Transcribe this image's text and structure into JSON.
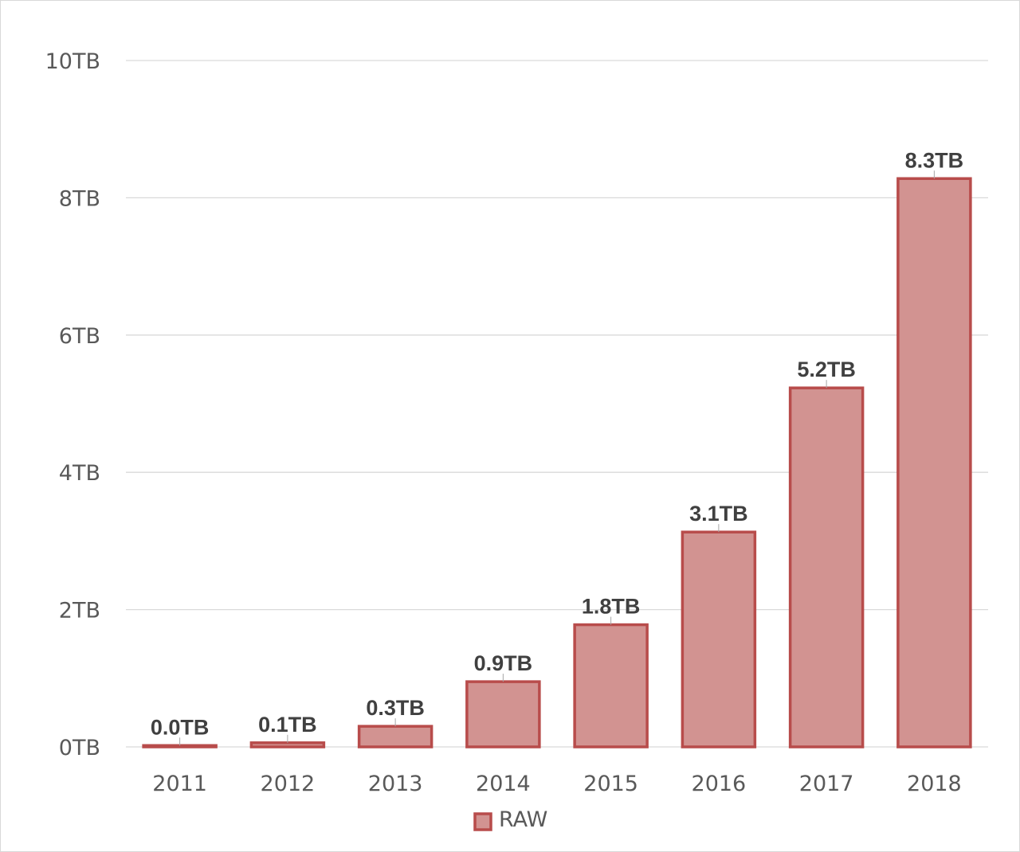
{
  "chart_data": {
    "type": "bar",
    "title": "",
    "xlabel": "",
    "ylabel": "",
    "categories": [
      "2011",
      "2012",
      "2013",
      "2014",
      "2015",
      "2016",
      "2017",
      "2018"
    ],
    "series": [
      {
        "name": "RAW",
        "values": [
          0.02,
          0.06,
          0.3,
          0.95,
          1.78,
          3.13,
          5.23,
          8.28
        ],
        "labels": [
          "0.0TB",
          "0.1TB",
          "0.3TB",
          "0.9TB",
          "1.8TB",
          "3.1TB",
          "5.2TB",
          "8.3TB"
        ]
      }
    ],
    "ylim": [
      0,
      10
    ],
    "yticks": [
      {
        "value": 0,
        "label": "0TB"
      },
      {
        "value": 2,
        "label": "2TB"
      },
      {
        "value": 4,
        "label": "4TB"
      },
      {
        "value": 6,
        "label": "6TB"
      },
      {
        "value": 8,
        "label": "8TB"
      },
      {
        "value": 10,
        "label": "10TB"
      }
    ],
    "grid": true,
    "legend_position": "bottom",
    "colors": {
      "bar_fill": "#d29391",
      "bar_stroke": "#b84c4b",
      "grid": "#d9d9d9"
    }
  }
}
